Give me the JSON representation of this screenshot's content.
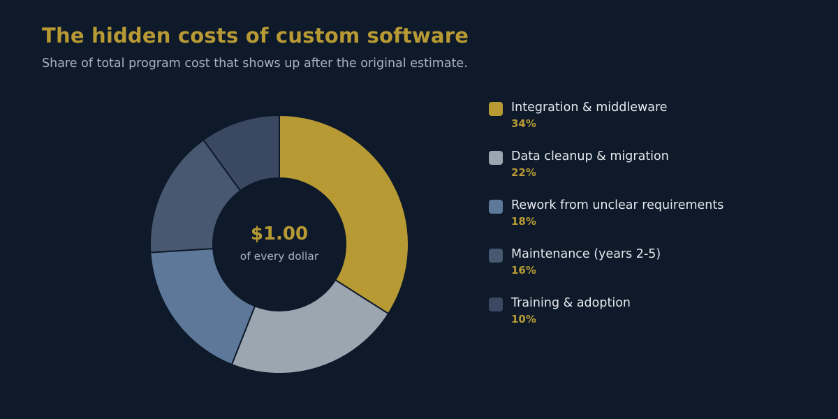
{
  "title": "The hidden costs of custom software",
  "subtitle": "Share of total program cost that shows up after the original estimate.",
  "center": {
    "value": "$1.00",
    "label": "of every dollar"
  },
  "chart_data": {
    "type": "pie",
    "donut": true,
    "title": "The hidden costs of custom software",
    "subtitle": "Share of total program cost that shows up after the original estimate.",
    "legend_position": "right",
    "unit": "%",
    "slices": [
      {
        "label": "Integration & middleware",
        "value": 34,
        "display": "34%",
        "color": "#b89a34"
      },
      {
        "label": "Data cleanup & migration",
        "value": 22,
        "display": "22%",
        "color": "#9ba6b1"
      },
      {
        "label": "Rework from unclear requirements",
        "value": 18,
        "display": "18%",
        "color": "#5e7899"
      },
      {
        "label": "Maintenance (years 2-5)",
        "value": 16,
        "display": "16%",
        "color": "#485870"
      },
      {
        "label": "Training & adoption",
        "value": 10,
        "display": "10%",
        "color": "#3a4861"
      }
    ]
  },
  "colors": {
    "background": "#0e1a2a",
    "accent": "#b89a34",
    "slice_border": "#0e1a2a"
  }
}
